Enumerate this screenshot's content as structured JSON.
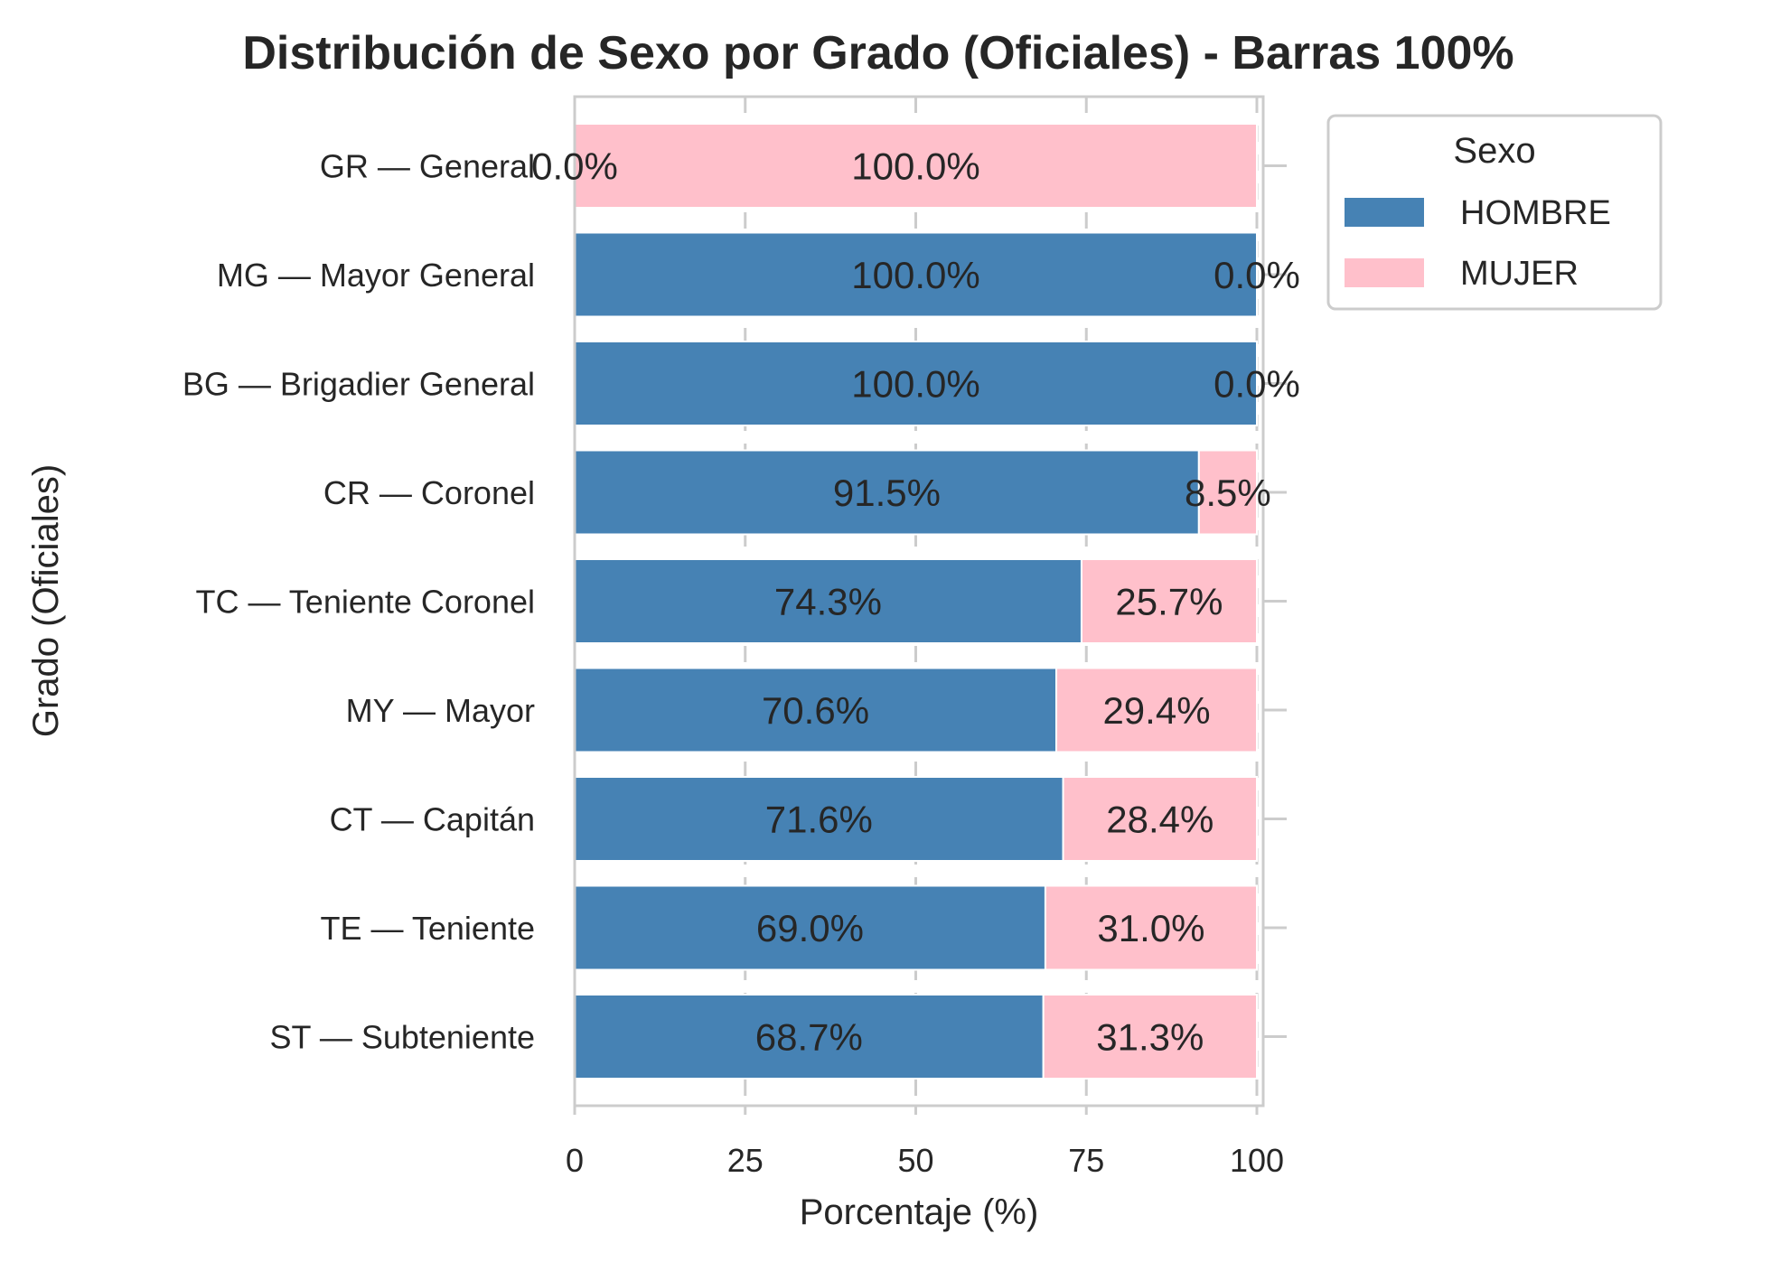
{
  "chart_data": {
    "type": "bar",
    "orientation": "horizontal",
    "stacked": true,
    "title": "Distribución de Sexo por Grado (Oficiales) - Barras 100%",
    "xlabel": "Porcentaje (%)",
    "ylabel": "Grado (Oficiales)",
    "xlim": [
      0,
      100
    ],
    "xticks": [
      "0",
      "25",
      "50",
      "75",
      "100"
    ],
    "grid": true,
    "categories": [
      "GR — General",
      "MG — Mayor General",
      "BG — Brigadier General",
      "CR — Coronel",
      "TC — Teniente Coronel",
      "MY — Mayor",
      "CT — Capitán",
      "TE — Teniente",
      "ST — Subteniente"
    ],
    "series": [
      {
        "name": "HOMBRE",
        "color": "#4682b4",
        "values": [
          0.0,
          100.0,
          100.0,
          91.5,
          74.3,
          70.6,
          71.6,
          69.0,
          68.7
        ],
        "labels": [
          "0.0%",
          "100.0%",
          "100.0%",
          "91.5%",
          "74.3%",
          "70.6%",
          "71.6%",
          "69.0%",
          "68.7%"
        ]
      },
      {
        "name": "MUJER",
        "color": "#ffc0cb",
        "values": [
          100.0,
          0.0,
          0.0,
          8.5,
          25.7,
          29.4,
          28.4,
          31.0,
          31.3
        ],
        "labels": [
          "100.0%",
          "0.0%",
          "0.0%",
          "8.5%",
          "25.7%",
          "29.4%",
          "28.4%",
          "31.0%",
          "31.3%"
        ]
      }
    ],
    "legend": {
      "title": "Sexo",
      "position": "outside-top-right"
    }
  }
}
